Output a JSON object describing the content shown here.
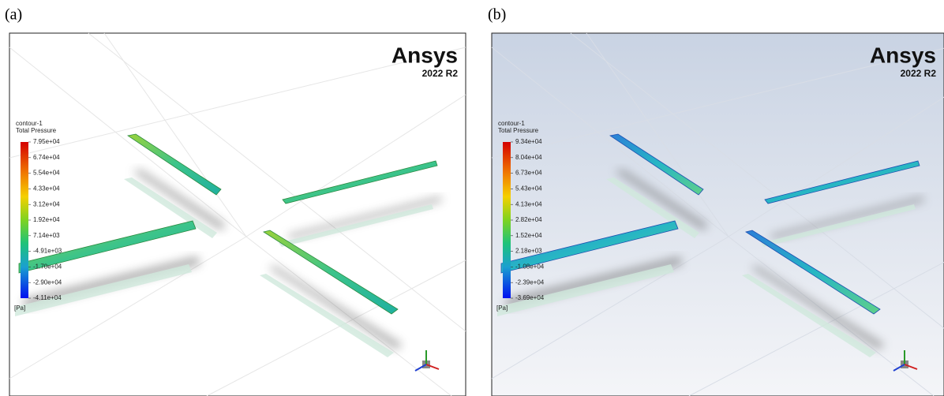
{
  "panels": [
    {
      "label": "(a)",
      "brand": "Ansys",
      "version": "2022 R2",
      "legend_title": "contour-1",
      "legend_variable": "Total Pressure",
      "legend_ticks": [
        "7.95e+04",
        "6.74e+04",
        "5.54e+04",
        "4.33e+04",
        "3.12e+04",
        "1.92e+04",
        "7.14e+03",
        "-4.91e+03",
        "-1.70e+04",
        "-2.90e+04",
        "-4.11e+04"
      ],
      "unit": "[Pa]"
    },
    {
      "label": "(b)",
      "brand": "Ansys",
      "version": "2022 R2",
      "legend_title": "contour-1",
      "legend_variable": "Total Pressure",
      "legend_ticks": [
        "9.34e+04",
        "8.04e+04",
        "6.73e+04",
        "5.43e+04",
        "4.13e+04",
        "2.82e+04",
        "1.52e+04",
        "2.18e+03",
        "-1.08e+04",
        "-2.39e+04",
        "-3.69e+04"
      ],
      "unit": "[Pa]"
    }
  ]
}
